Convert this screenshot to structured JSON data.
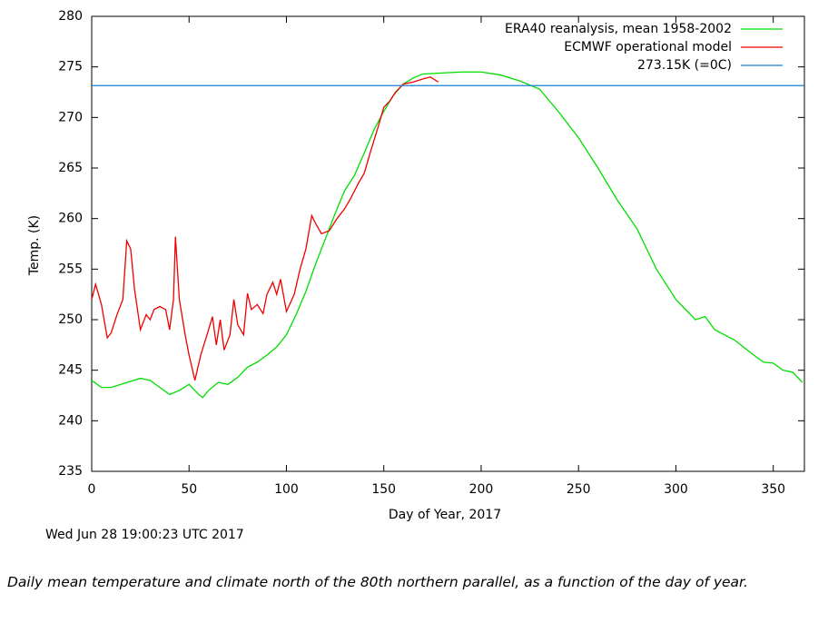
{
  "chart_data": {
    "type": "line",
    "xlabel": "Day of Year, 2017",
    "ylabel": "Temp. (K)",
    "timestamp": "Wed Jun 28 19:00:23 UTC 2017",
    "xlim": [
      0,
      366
    ],
    "ylim": [
      235,
      280
    ],
    "xticks": [
      0,
      50,
      100,
      150,
      200,
      250,
      300,
      350
    ],
    "yticks": [
      235,
      240,
      245,
      250,
      255,
      260,
      265,
      270,
      275,
      280
    ],
    "legend": "top-right",
    "series": [
      {
        "name": "ERA40 reanalysis, mean 1958-2002",
        "color": "#00dd00",
        "x": [
          0,
          5,
          10,
          15,
          20,
          25,
          30,
          35,
          40,
          45,
          50,
          55,
          57,
          60,
          65,
          70,
          75,
          80,
          85,
          90,
          95,
          100,
          105,
          110,
          115,
          120,
          125,
          130,
          135,
          140,
          145,
          150,
          155,
          160,
          165,
          170,
          180,
          190,
          200,
          210,
          220,
          230,
          240,
          250,
          260,
          270,
          280,
          290,
          300,
          305,
          310,
          315,
          320,
          330,
          340,
          345,
          350,
          355,
          360,
          365
        ],
        "values": [
          244,
          243.3,
          243.3,
          243.6,
          243.9,
          244.2,
          244,
          243.3,
          242.6,
          243,
          243.6,
          242.6,
          242.3,
          243,
          243.8,
          243.6,
          244.3,
          245.3,
          245.8,
          246.5,
          247.3,
          248.5,
          250.5,
          252.8,
          255.5,
          258,
          260.5,
          262.8,
          264.3,
          266.5,
          268.8,
          270.6,
          272.2,
          273.3,
          273.9,
          274.3,
          274.4,
          274.5,
          274.5,
          274.2,
          273.6,
          272.8,
          270.5,
          268,
          265,
          261.8,
          259,
          255,
          252,
          251,
          250,
          250.3,
          249,
          248,
          246.5,
          245.8,
          245.7,
          245,
          244.8,
          243.8
        ]
      },
      {
        "name": "ECMWF operational model",
        "color": "#ee0000",
        "x": [
          0,
          2,
          5,
          8,
          10,
          13,
          16,
          18,
          20,
          22,
          25,
          28,
          30,
          32,
          35,
          38,
          40,
          42,
          43,
          45,
          48,
          50,
          53,
          56,
          60,
          62,
          64,
          66,
          68,
          71,
          73,
          75,
          78,
          80,
          82,
          85,
          88,
          90,
          93,
          95,
          97,
          100,
          104,
          107,
          110,
          113,
          115,
          118,
          122,
          126,
          130,
          133,
          137,
          140,
          143,
          147,
          150,
          153,
          156,
          160,
          165,
          170,
          174,
          178
        ],
        "values": [
          252,
          253.5,
          251.5,
          248.2,
          248.7,
          250.5,
          252,
          257.8,
          257,
          253,
          249,
          250.5,
          250,
          251,
          251.3,
          251,
          249,
          252,
          258.2,
          252,
          248.5,
          246.5,
          244,
          246.5,
          249,
          250.3,
          247.5,
          250,
          247,
          248.5,
          252,
          249.5,
          248.5,
          252.6,
          251,
          251.5,
          250.6,
          252.5,
          253.7,
          252.5,
          254,
          250.8,
          252.5,
          255,
          257,
          260.3,
          259.5,
          258.5,
          258.8,
          260,
          261,
          262,
          263.5,
          264.5,
          266.5,
          269,
          271,
          271.6,
          272.5,
          273.3,
          273.5,
          273.8,
          274,
          273.5
        ]
      },
      {
        "name": "273.15K (=0C)",
        "color": "#1a7fd4",
        "x": [
          0,
          366
        ],
        "values": [
          273.15,
          273.15
        ]
      }
    ]
  },
  "caption": "Daily mean temperature and climate north of the 80th northern parallel, as a function of the day of year."
}
